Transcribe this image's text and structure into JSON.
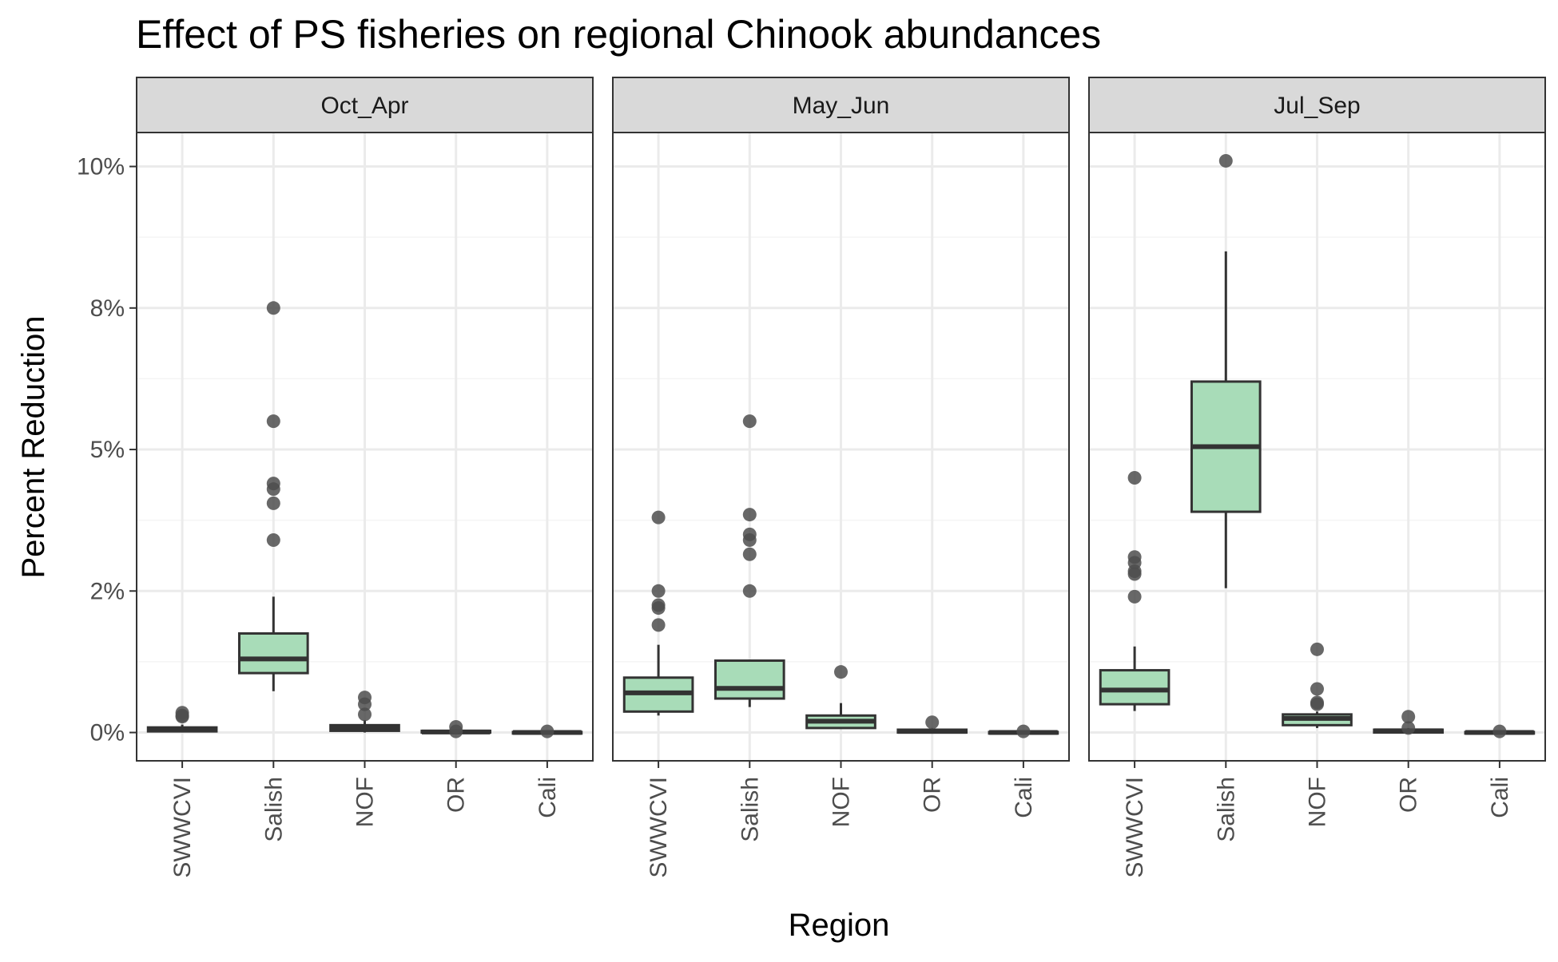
{
  "chart_data": {
    "type": "boxplot",
    "title": "Effect of PS fisheries on regional Chinook abundances",
    "xlabel": "Region",
    "ylabel": "Percent Reduction",
    "categories": [
      "SWWCVI",
      "Salish",
      "NOF",
      "OR",
      "Cali"
    ],
    "y_tick_values": [
      0,
      2.5,
      5,
      7.5,
      10
    ],
    "y_tick_labels": [
      "0%",
      "2%",
      "5%",
      "8%",
      "10%"
    ],
    "ylim": [
      -0.5,
      10.6
    ],
    "grid": true,
    "colors": {
      "box_fill": "#a8dcb8",
      "box_stroke": "#333333",
      "outlier": "#4d4d4d",
      "strip_bg": "#d9d9d9",
      "grid_major": "#ebebeb"
    },
    "panels": [
      {
        "name": "Oct_Apr",
        "boxes": [
          {
            "category": "SWWCVI",
            "lower": 0.0,
            "q1": 0.02,
            "median": 0.05,
            "q3": 0.09,
            "upper": 0.14,
            "outliers": [
              0.3,
              0.35,
              0.28
            ]
          },
          {
            "category": "Salish",
            "lower": 0.73,
            "q1": 1.05,
            "median": 1.3,
            "q3": 1.75,
            "upper": 2.4,
            "outliers": [
              3.4,
              4.05,
              4.3,
              4.4,
              5.5,
              7.5
            ]
          },
          {
            "category": "NOF",
            "lower": 0.0,
            "q1": 0.03,
            "median": 0.08,
            "q3": 0.13,
            "upper": 0.22,
            "outliers": [
              0.32,
              0.5,
              0.62
            ]
          },
          {
            "category": "OR",
            "lower": 0.0,
            "q1": 0.0,
            "median": 0.01,
            "q3": 0.03,
            "upper": 0.06,
            "outliers": [
              0.1,
              0.02
            ]
          },
          {
            "category": "Cali",
            "lower": 0.0,
            "q1": 0.0,
            "median": 0.0,
            "q3": 0.01,
            "upper": 0.02,
            "outliers": [
              0.02
            ]
          }
        ]
      },
      {
        "name": "May_Jun",
        "boxes": [
          {
            "category": "SWWCVI",
            "lower": 0.3,
            "q1": 0.37,
            "median": 0.7,
            "q3": 0.97,
            "upper": 1.55,
            "outliers": [
              1.9,
              2.2,
              2.25,
              2.5,
              3.8
            ]
          },
          {
            "category": "Salish",
            "lower": 0.45,
            "q1": 0.6,
            "median": 0.78,
            "q3": 1.27,
            "upper": 1.27,
            "outliers": [
              2.5,
              3.15,
              3.4,
              3.5,
              3.85,
              5.5
            ]
          },
          {
            "category": "NOF",
            "lower": 0.1,
            "q1": 0.08,
            "median": 0.2,
            "q3": 0.3,
            "upper": 0.52,
            "outliers": [
              1.07
            ]
          },
          {
            "category": "OR",
            "lower": 0.0,
            "q1": 0.0,
            "median": 0.02,
            "q3": 0.05,
            "upper": 0.08,
            "outliers": [
              0.18
            ]
          },
          {
            "category": "Cali",
            "lower": 0.0,
            "q1": 0.0,
            "median": 0.0,
            "q3": 0.01,
            "upper": 0.02,
            "outliers": [
              0.02
            ]
          }
        ]
      },
      {
        "name": "Jul_Sep",
        "boxes": [
          {
            "category": "SWWCVI",
            "lower": 0.38,
            "q1": 0.5,
            "median": 0.75,
            "q3": 1.1,
            "upper": 1.52,
            "outliers": [
              2.4,
              2.8,
              2.85,
              3.0,
              3.1,
              4.5
            ]
          },
          {
            "category": "Salish",
            "lower": 2.55,
            "q1": 3.9,
            "median": 5.05,
            "q3": 6.2,
            "upper": 8.5,
            "outliers": [
              10.1
            ]
          },
          {
            "category": "NOF",
            "lower": 0.08,
            "q1": 0.13,
            "median": 0.25,
            "q3": 0.32,
            "upper": 0.37,
            "outliers": [
              0.5,
              0.53,
              0.77,
              1.47
            ]
          },
          {
            "category": "OR",
            "lower": 0.0,
            "q1": 0.0,
            "median": 0.03,
            "q3": 0.05,
            "upper": 0.08,
            "outliers": [
              0.28,
              0.08
            ]
          },
          {
            "category": "Cali",
            "lower": 0.0,
            "q1": 0.0,
            "median": 0.0,
            "q3": 0.01,
            "upper": 0.02,
            "outliers": [
              0.02
            ]
          }
        ]
      }
    ]
  }
}
